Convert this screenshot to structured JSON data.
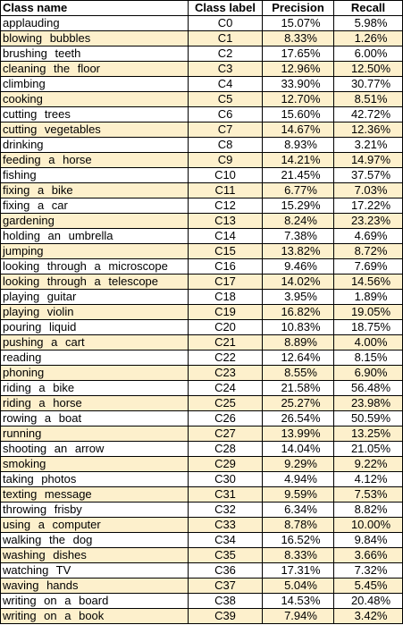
{
  "header": {
    "name": "Class name",
    "label": "Class label",
    "precision": "Precision",
    "recall": "Recall"
  },
  "rows": [
    [
      "applauding",
      "C0",
      "15.07%",
      "5.98%"
    ],
    [
      "blowing bubbles",
      "C1",
      "8.33%",
      "1.26%"
    ],
    [
      "brushing teeth",
      "C2",
      "17.65%",
      "6.00%"
    ],
    [
      "cleaning the floor",
      "C3",
      "12.96%",
      "12.50%"
    ],
    [
      "climbing",
      "C4",
      "33.90%",
      "30.77%"
    ],
    [
      "cooking",
      "C5",
      "12.70%",
      "8.51%"
    ],
    [
      "cutting trees",
      "C6",
      "15.60%",
      "42.72%"
    ],
    [
      "cutting vegetables",
      "C7",
      "14.67%",
      "12.36%"
    ],
    [
      "drinking",
      "C8",
      "8.93%",
      "3.21%"
    ],
    [
      "feeding a horse",
      "C9",
      "14.21%",
      "14.97%"
    ],
    [
      "fishing",
      "C10",
      "21.45%",
      "37.57%"
    ],
    [
      "fixing a bike",
      "C11",
      "6.77%",
      "7.03%"
    ],
    [
      "fixing a car",
      "C12",
      "15.29%",
      "17.22%"
    ],
    [
      "gardening",
      "C13",
      "8.24%",
      "23.23%"
    ],
    [
      "holding an umbrella",
      "C14",
      "7.38%",
      "4.69%"
    ],
    [
      "jumping",
      "C15",
      "13.82%",
      "8.72%"
    ],
    [
      "looking through a microscope",
      "C16",
      "9.46%",
      "7.69%"
    ],
    [
      "looking through a telescope",
      "C17",
      "14.02%",
      "14.56%"
    ],
    [
      "playing guitar",
      "C18",
      "3.95%",
      "1.89%"
    ],
    [
      "playing violin",
      "C19",
      "16.82%",
      "19.05%"
    ],
    [
      "pouring liquid",
      "C20",
      "10.83%",
      "18.75%"
    ],
    [
      "pushing a cart",
      "C21",
      "8.89%",
      "4.00%"
    ],
    [
      "reading",
      "C22",
      "12.64%",
      "8.15%"
    ],
    [
      "phoning",
      "C23",
      "8.55%",
      "6.90%"
    ],
    [
      "riding a bike",
      "C24",
      "21.58%",
      "56.48%"
    ],
    [
      "riding a horse",
      "C25",
      "25.27%",
      "23.98%"
    ],
    [
      "rowing a boat",
      "C26",
      "26.54%",
      "50.59%"
    ],
    [
      "running",
      "C27",
      "13.99%",
      "13.25%"
    ],
    [
      "shooting an arrow",
      "C28",
      "14.04%",
      "21.05%"
    ],
    [
      "smoking",
      "C29",
      "9.29%",
      "9.22%"
    ],
    [
      "taking photos",
      "C30",
      "4.94%",
      "4.12%"
    ],
    [
      "texting message",
      "C31",
      "9.59%",
      "7.53%"
    ],
    [
      "throwing frisby",
      "C32",
      "6.34%",
      "8.82%"
    ],
    [
      "using a computer",
      "C33",
      "8.78%",
      "10.00%"
    ],
    [
      "walking the dog",
      "C34",
      "16.52%",
      "9.84%"
    ],
    [
      "washing dishes",
      "C35",
      "8.33%",
      "3.66%"
    ],
    [
      "watching TV",
      "C36",
      "17.31%",
      "7.32%"
    ],
    [
      "waving hands",
      "C37",
      "5.04%",
      "5.45%"
    ],
    [
      "writing on a board",
      "C38",
      "14.53%",
      "20.48%"
    ],
    [
      "writing on a book",
      "C39",
      "7.94%",
      "3.42%"
    ]
  ],
  "colors": {
    "stripe": "#fdf0cc",
    "base": "#ffffff",
    "border": "#000000"
  }
}
